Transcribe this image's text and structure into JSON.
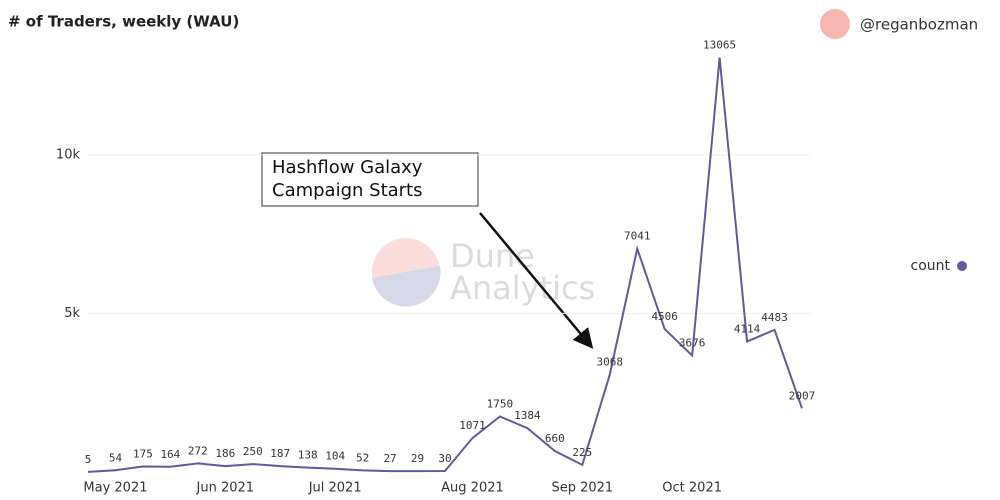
{
  "chart_data": {
    "type": "line",
    "title": "# of Traders, weekly (WAU)",
    "credit": "@reganbozman",
    "watermark": [
      "Dune",
      "Analytics"
    ],
    "annotation": [
      "Hashflow Galaxy",
      "Campaign Starts"
    ],
    "categories": [
      null,
      "May 2021",
      null,
      null,
      null,
      "Jun 2021",
      null,
      null,
      null,
      "Jul 2021",
      null,
      null,
      null,
      null,
      "Aug 2021",
      null,
      null,
      null,
      "Sep 2021",
      null,
      null,
      null,
      "Oct 2021",
      null,
      null,
      null,
      null
    ],
    "series": [
      {
        "name": "count",
        "color": "#5a5d99",
        "values": [
          5,
          54,
          175,
          164,
          272,
          186,
          250,
          187,
          138,
          104,
          52,
          27,
          29,
          30,
          1071,
          1750,
          1384,
          660,
          225,
          3068,
          7041,
          4506,
          3676,
          13065,
          4114,
          4483,
          2007
        ]
      }
    ],
    "ylim": [
      0,
      14000
    ],
    "yticks": [
      {
        "value": 5000,
        "label": "5k"
      },
      {
        "value": 10000,
        "label": "10k"
      }
    ],
    "grid": true
  }
}
